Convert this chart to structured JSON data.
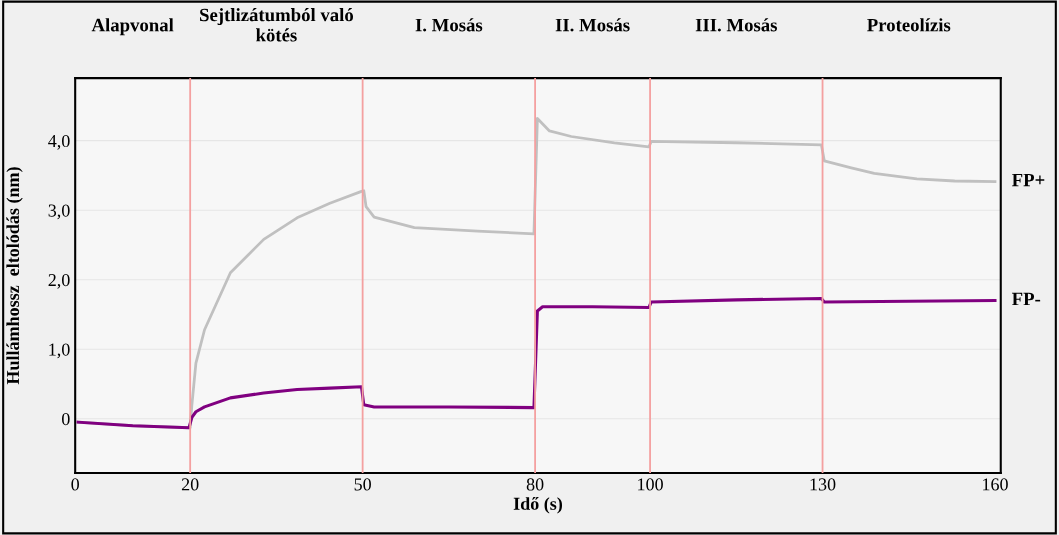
{
  "chart_data": {
    "type": "line",
    "xlabel": "Idő (s)",
    "ylabel": "Hullámhossz  eltolódás (nm)",
    "xlim": [
      0,
      161
    ],
    "ylim": [
      -0.78,
      4.9
    ],
    "xticks": [
      0,
      20,
      50,
      80,
      100,
      130,
      160
    ],
    "yticks": [
      {
        "value": 0,
        "label": "0"
      },
      {
        "value": 1,
        "label": "1,0"
      },
      {
        "value": 2,
        "label": "2,0"
      },
      {
        "value": 3,
        "label": "3,0"
      },
      {
        "value": 4,
        "label": "4,0"
      }
    ],
    "grid": "y",
    "marker": "none",
    "line_style": "solid",
    "ref_lines": [
      {
        "axis": "x",
        "value": 20,
        "color": "#f4a0a0"
      },
      {
        "axis": "x",
        "value": 50,
        "color": "#f4a0a0"
      },
      {
        "axis": "x",
        "value": 80,
        "color": "#f4a0a0"
      },
      {
        "axis": "x",
        "value": 100,
        "color": "#f4a0a0"
      },
      {
        "axis": "x",
        "value": 130,
        "color": "#f4a0a0"
      }
    ],
    "annotations": [
      "Alapvonal",
      "Sejtlizátumból való\nkötés",
      "I. Mosás",
      "II. Mosás",
      "III. Mosás",
      "Proteolízis"
    ],
    "series": [
      {
        "name": "FP+",
        "color": "#c0c0c0",
        "x": [
          0.5,
          10,
          20,
          20.3,
          21,
          22.5,
          27,
          32.8,
          38.6,
          44.3,
          49.8,
          50.2,
          50.6,
          52,
          59,
          70,
          79.8,
          80.4,
          82.5,
          86.3,
          93.8,
          99.8,
          100.2,
          115,
          129.8,
          130.3,
          135,
          139,
          146.4,
          153,
          160
        ],
        "values": [
          -0.05,
          -0.1,
          -0.13,
          0.2,
          0.8,
          1.28,
          2.1,
          2.58,
          2.89,
          3.1,
          3.27,
          3.28,
          3.05,
          2.9,
          2.75,
          2.7,
          2.66,
          4.32,
          4.14,
          4.06,
          3.97,
          3.91,
          3.99,
          3.97,
          3.94,
          3.71,
          3.61,
          3.53,
          3.45,
          3.42,
          3.41
        ]
      },
      {
        "name": "FP-",
        "color": "#800080",
        "x": [
          0.5,
          10,
          19.8,
          20.3,
          21,
          22.5,
          27,
          32.8,
          38.6,
          44.3,
          49.8,
          50.2,
          52,
          65,
          79.8,
          80.4,
          81.3,
          90,
          99.8,
          100.2,
          115,
          129.8,
          130.3,
          145,
          160
        ],
        "values": [
          -0.05,
          -0.1,
          -0.13,
          0.02,
          0.1,
          0.17,
          0.3,
          0.37,
          0.42,
          0.44,
          0.46,
          0.2,
          0.17,
          0.17,
          0.16,
          1.55,
          1.61,
          1.61,
          1.6,
          1.68,
          1.71,
          1.73,
          1.68,
          1.69,
          1.7
        ]
      }
    ]
  }
}
